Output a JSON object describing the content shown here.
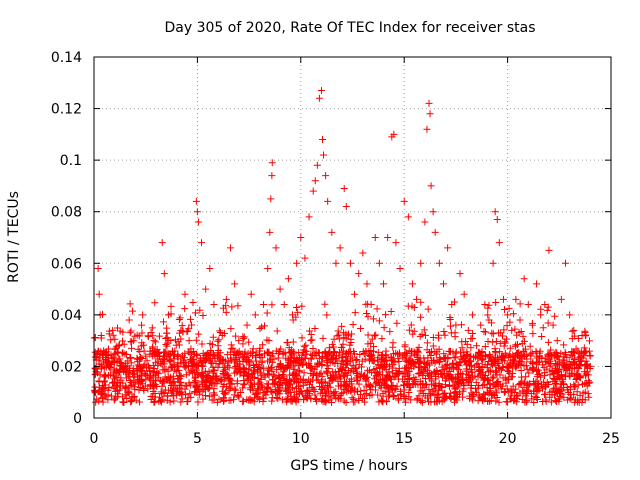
{
  "chart_data": {
    "type": "scatter",
    "title": "Day 305 of 2020, Rate Of TEC Index for receiver stas",
    "xlabel": "GPS time / hours",
    "ylabel": "ROTI / TECUs",
    "xlim": [
      0,
      25
    ],
    "ylim": [
      0,
      0.14
    ],
    "xticks": [
      0,
      5,
      10,
      15,
      20,
      25
    ],
    "xtick_labels": [
      "0",
      "5",
      "10",
      "15",
      "20",
      "25"
    ],
    "yticks": [
      0,
      0.02,
      0.04,
      0.06,
      0.08,
      0.1,
      0.12,
      0.14
    ],
    "ytick_labels": [
      "0",
      "0.02",
      "0.04",
      "0.06",
      "0.08",
      "0.1",
      "0.12",
      "0.14"
    ],
    "grid": true,
    "marker": "+",
    "color": "#ff0000",
    "points": [
      [
        0.05,
        0.012
      ],
      [
        0.1,
        0.018
      ],
      [
        0.15,
        0.025
      ],
      [
        0.2,
        0.058
      ],
      [
        0.25,
        0.048
      ],
      [
        0.3,
        0.04
      ],
      [
        0.35,
        0.032
      ],
      [
        0.5,
        0.016
      ],
      [
        0.7,
        0.022
      ],
      [
        0.9,
        0.034
      ],
      [
        1.0,
        0.014
      ],
      [
        1.2,
        0.028
      ],
      [
        1.5,
        0.02
      ],
      [
        1.7,
        0.038
      ],
      [
        1.9,
        0.03
      ],
      [
        2.1,
        0.016
      ],
      [
        2.3,
        0.036
      ],
      [
        2.5,
        0.024
      ],
      [
        2.7,
        0.018
      ],
      [
        2.9,
        0.03
      ],
      [
        3.1,
        0.022
      ],
      [
        3.3,
        0.068
      ],
      [
        3.4,
        0.056
      ],
      [
        3.6,
        0.04
      ],
      [
        3.8,
        0.026
      ],
      [
        4.0,
        0.018
      ],
      [
        4.2,
        0.034
      ],
      [
        4.4,
        0.048
      ],
      [
        4.6,
        0.03
      ],
      [
        4.8,
        0.02
      ],
      [
        4.95,
        0.084
      ],
      [
        5.0,
        0.08
      ],
      [
        5.05,
        0.076
      ],
      [
        5.2,
        0.068
      ],
      [
        5.4,
        0.05
      ],
      [
        5.6,
        0.058
      ],
      [
        5.8,
        0.044
      ],
      [
        6.0,
        0.028
      ],
      [
        6.2,
        0.032
      ],
      [
        6.4,
        0.046
      ],
      [
        6.6,
        0.066
      ],
      [
        6.8,
        0.052
      ],
      [
        7.0,
        0.03
      ],
      [
        7.2,
        0.022
      ],
      [
        7.4,
        0.036
      ],
      [
        7.6,
        0.048
      ],
      [
        7.8,
        0.04
      ],
      [
        8.0,
        0.026
      ],
      [
        8.2,
        0.044
      ],
      [
        8.4,
        0.058
      ],
      [
        8.5,
        0.072
      ],
      [
        8.55,
        0.085
      ],
      [
        8.6,
        0.094
      ],
      [
        8.62,
        0.099
      ],
      [
        8.8,
        0.066
      ],
      [
        9.0,
        0.05
      ],
      [
        9.2,
        0.044
      ],
      [
        9.4,
        0.054
      ],
      [
        9.6,
        0.04
      ],
      [
        9.8,
        0.06
      ],
      [
        10.0,
        0.07
      ],
      [
        10.2,
        0.062
      ],
      [
        10.4,
        0.078
      ],
      [
        10.6,
        0.088
      ],
      [
        10.7,
        0.092
      ],
      [
        10.8,
        0.098
      ],
      [
        10.9,
        0.124
      ],
      [
        11.0,
        0.127
      ],
      [
        11.05,
        0.108
      ],
      [
        11.1,
        0.102
      ],
      [
        11.2,
        0.094
      ],
      [
        11.3,
        0.084
      ],
      [
        11.5,
        0.072
      ],
      [
        11.7,
        0.06
      ],
      [
        11.9,
        0.066
      ],
      [
        12.1,
        0.089
      ],
      [
        12.2,
        0.082
      ],
      [
        12.4,
        0.06
      ],
      [
        12.6,
        0.048
      ],
      [
        12.8,
        0.056
      ],
      [
        13.0,
        0.064
      ],
      [
        13.2,
        0.052
      ],
      [
        13.4,
        0.044
      ],
      [
        13.6,
        0.07
      ],
      [
        13.8,
        0.06
      ],
      [
        14.0,
        0.052
      ],
      [
        14.2,
        0.07
      ],
      [
        14.4,
        0.109
      ],
      [
        14.5,
        0.11
      ],
      [
        14.6,
        0.068
      ],
      [
        14.8,
        0.058
      ],
      [
        15.0,
        0.084
      ],
      [
        15.2,
        0.078
      ],
      [
        15.4,
        0.052
      ],
      [
        15.6,
        0.046
      ],
      [
        15.8,
        0.06
      ],
      [
        16.0,
        0.076
      ],
      [
        16.1,
        0.112
      ],
      [
        16.2,
        0.122
      ],
      [
        16.25,
        0.118
      ],
      [
        16.3,
        0.09
      ],
      [
        16.4,
        0.08
      ],
      [
        16.5,
        0.072
      ],
      [
        16.7,
        0.06
      ],
      [
        16.9,
        0.052
      ],
      [
        17.1,
        0.066
      ],
      [
        17.3,
        0.044
      ],
      [
        17.5,
        0.036
      ],
      [
        17.7,
        0.056
      ],
      [
        17.9,
        0.048
      ],
      [
        18.1,
        0.034
      ],
      [
        18.3,
        0.04
      ],
      [
        18.5,
        0.028
      ],
      [
        18.7,
        0.036
      ],
      [
        18.9,
        0.044
      ],
      [
        19.1,
        0.038
      ],
      [
        19.3,
        0.06
      ],
      [
        19.4,
        0.08
      ],
      [
        19.5,
        0.077
      ],
      [
        19.6,
        0.068
      ],
      [
        19.8,
        0.046
      ],
      [
        20.0,
        0.04
      ],
      [
        20.2,
        0.034
      ],
      [
        20.4,
        0.046
      ],
      [
        20.6,
        0.038
      ],
      [
        20.8,
        0.054
      ],
      [
        21.0,
        0.044
      ],
      [
        21.2,
        0.036
      ],
      [
        21.4,
        0.052
      ],
      [
        21.6,
        0.04
      ],
      [
        21.8,
        0.044
      ],
      [
        22.0,
        0.065
      ],
      [
        22.2,
        0.036
      ],
      [
        22.4,
        0.03
      ],
      [
        22.6,
        0.046
      ],
      [
        22.8,
        0.06
      ],
      [
        23.0,
        0.04
      ],
      [
        23.2,
        0.034
      ],
      [
        23.4,
        0.026
      ],
      [
        23.6,
        0.032
      ],
      [
        23.8,
        0.022
      ],
      [
        24.0,
        0.02
      ]
    ]
  }
}
